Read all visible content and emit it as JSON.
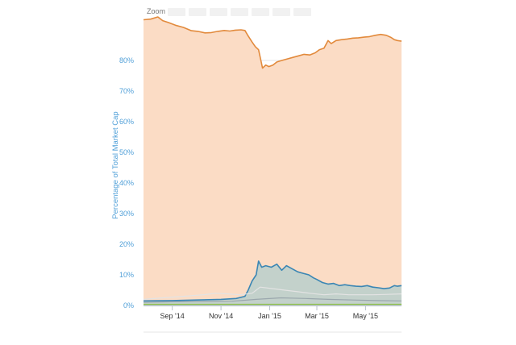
{
  "zoom_bar": {
    "label": "Zoom",
    "buttons": [
      "",
      "",
      "",
      "",
      "",
      "",
      ""
    ]
  },
  "chart_data": {
    "type": "area",
    "title": "",
    "xlabel": "",
    "ylabel": "Percentage of Total Market Cap",
    "ylim": [
      0,
      95
    ],
    "y_ticks": [
      "0%",
      "10%",
      "20%",
      "30%",
      "40%",
      "50%",
      "60%",
      "70%",
      "80%"
    ],
    "x_ticks": [
      {
        "label": "Sep '14",
        "x": "2014-09-01"
      },
      {
        "label": "Nov '14",
        "x": "2014-11-01"
      },
      {
        "label": "Jan '15",
        "x": "2015-01-01"
      },
      {
        "label": "Mar '15",
        "x": "2015-03-01"
      },
      {
        "label": "May '15",
        "x": "2015-05-01"
      }
    ],
    "xlim": [
      "2014-07-27",
      "2015-06-15"
    ],
    "grid": true,
    "legend": "none",
    "series": [
      {
        "color": "#e28a3c",
        "fill": "#fbdcc5",
        "points": [
          [
            "2014-07-27",
            93.3
          ],
          [
            "2014-08-05",
            93.5
          ],
          [
            "2014-08-14",
            94.2
          ],
          [
            "2014-08-20",
            93.0
          ],
          [
            "2014-08-27",
            92.4
          ],
          [
            "2014-09-05",
            91.5
          ],
          [
            "2014-09-15",
            90.8
          ],
          [
            "2014-09-25",
            89.7
          ],
          [
            "2014-10-03",
            89.5
          ],
          [
            "2014-10-12",
            89.0
          ],
          [
            "2014-10-20",
            89.1
          ],
          [
            "2014-10-28",
            89.5
          ],
          [
            "2014-11-05",
            89.8
          ],
          [
            "2014-11-12",
            89.6
          ],
          [
            "2014-11-19",
            89.9
          ],
          [
            "2014-11-26",
            90.0
          ],
          [
            "2014-12-01",
            89.8
          ],
          [
            "2014-12-05",
            88.0
          ],
          [
            "2014-12-10",
            86.0
          ],
          [
            "2014-12-14",
            84.5
          ],
          [
            "2014-12-18",
            83.5
          ],
          [
            "2014-12-21",
            80.0
          ],
          [
            "2014-12-23",
            77.5
          ],
          [
            "2014-12-27",
            78.5
          ],
          [
            "2014-12-31",
            78.0
          ],
          [
            "2015-01-05",
            78.5
          ],
          [
            "2015-01-10",
            79.5
          ],
          [
            "2015-01-16",
            80.0
          ],
          [
            "2015-01-23",
            80.5
          ],
          [
            "2015-01-30",
            81.0
          ],
          [
            "2015-02-06",
            81.5
          ],
          [
            "2015-02-13",
            82.0
          ],
          [
            "2015-02-20",
            81.8
          ],
          [
            "2015-02-27",
            82.5
          ],
          [
            "2015-03-04",
            83.5
          ],
          [
            "2015-03-10",
            84.0
          ],
          [
            "2015-03-15",
            86.5
          ],
          [
            "2015-03-19",
            85.5
          ],
          [
            "2015-03-25",
            86.5
          ],
          [
            "2015-04-01",
            86.8
          ],
          [
            "2015-04-08",
            87.0
          ],
          [
            "2015-04-15",
            87.3
          ],
          [
            "2015-04-22",
            87.4
          ],
          [
            "2015-04-29",
            87.6
          ],
          [
            "2015-05-06",
            87.8
          ],
          [
            "2015-05-13",
            88.2
          ],
          [
            "2015-05-20",
            88.5
          ],
          [
            "2015-05-27",
            88.2
          ],
          [
            "2015-06-02",
            87.5
          ],
          [
            "2015-06-06",
            86.8
          ],
          [
            "2015-06-10",
            86.5
          ],
          [
            "2015-06-15",
            86.3
          ]
        ]
      },
      {
        "color": "#3a86b4",
        "fill": "#bccfcb",
        "points": [
          [
            "2014-07-27",
            1.5
          ],
          [
            "2014-09-01",
            1.6
          ],
          [
            "2014-10-01",
            1.8
          ],
          [
            "2014-11-01",
            2.0
          ],
          [
            "2014-11-20",
            2.3
          ],
          [
            "2014-12-01",
            3.0
          ],
          [
            "2014-12-05",
            5.0
          ],
          [
            "2014-12-10",
            8.0
          ],
          [
            "2014-12-15",
            10.0
          ],
          [
            "2014-12-18",
            14.5
          ],
          [
            "2014-12-22",
            12.5
          ],
          [
            "2014-12-27",
            13.0
          ],
          [
            "2015-01-03",
            12.5
          ],
          [
            "2015-01-10",
            13.5
          ],
          [
            "2015-01-16",
            11.5
          ],
          [
            "2015-01-22",
            13.0
          ],
          [
            "2015-01-29",
            12.0
          ],
          [
            "2015-02-05",
            11.0
          ],
          [
            "2015-02-12",
            10.5
          ],
          [
            "2015-02-19",
            10.0
          ],
          [
            "2015-02-25",
            9.0
          ],
          [
            "2015-03-01",
            8.5
          ],
          [
            "2015-03-08",
            7.5
          ],
          [
            "2015-03-15",
            7.0
          ],
          [
            "2015-03-22",
            7.2
          ],
          [
            "2015-03-29",
            6.5
          ],
          [
            "2015-04-05",
            6.8
          ],
          [
            "2015-04-12",
            6.5
          ],
          [
            "2015-04-19",
            6.3
          ],
          [
            "2015-04-26",
            6.2
          ],
          [
            "2015-05-03",
            6.5
          ],
          [
            "2015-05-10",
            6.0
          ],
          [
            "2015-05-17",
            5.8
          ],
          [
            "2015-05-24",
            5.5
          ],
          [
            "2015-05-31",
            5.7
          ],
          [
            "2015-06-06",
            6.5
          ],
          [
            "2015-06-10",
            6.3
          ],
          [
            "2015-06-15",
            6.5
          ]
        ]
      },
      {
        "color": "#e3e3e3",
        "fill": "none",
        "points": [
          [
            "2014-07-27",
            2.0
          ],
          [
            "2014-08-20",
            2.5
          ],
          [
            "2014-09-15",
            3.0
          ],
          [
            "2014-10-10",
            3.5
          ],
          [
            "2014-10-25",
            4.0
          ],
          [
            "2014-11-10",
            3.8
          ],
          [
            "2014-11-25",
            3.5
          ],
          [
            "2014-12-10",
            4.0
          ],
          [
            "2014-12-15",
            5.0
          ],
          [
            "2014-12-20",
            6.0
          ],
          [
            "2015-01-05",
            5.5
          ],
          [
            "2015-01-20",
            5.0
          ],
          [
            "2015-02-05",
            4.5
          ],
          [
            "2015-02-20",
            4.0
          ],
          [
            "2015-03-10",
            3.5
          ],
          [
            "2015-03-25",
            3.8
          ],
          [
            "2015-04-10",
            3.5
          ],
          [
            "2015-04-25",
            3.5
          ],
          [
            "2015-05-10",
            3.5
          ],
          [
            "2015-05-25",
            3.6
          ],
          [
            "2015-06-15",
            3.8
          ]
        ]
      },
      {
        "color": "#9aa7ad",
        "fill": "none",
        "points": [
          [
            "2014-07-27",
            1.0
          ],
          [
            "2014-09-01",
            1.2
          ],
          [
            "2014-10-15",
            1.3
          ],
          [
            "2014-11-15",
            1.4
          ],
          [
            "2014-12-15",
            2.0
          ],
          [
            "2015-01-15",
            2.5
          ],
          [
            "2015-02-15",
            2.3
          ],
          [
            "2015-03-15",
            2.0
          ],
          [
            "2015-04-15",
            1.8
          ],
          [
            "2015-05-15",
            1.6
          ],
          [
            "2015-06-15",
            1.5
          ]
        ]
      },
      {
        "color": "#8bbd4b",
        "fill": "none",
        "points": [
          [
            "2014-07-27",
            0.4
          ],
          [
            "2015-06-15",
            0.4
          ]
        ]
      }
    ]
  }
}
